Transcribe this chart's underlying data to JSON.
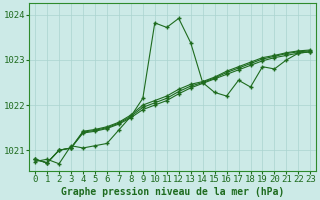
{
  "title": "Graphe pression niveau de la mer (hPa)",
  "background_color": "#cceae7",
  "grid_color": "#aad4d0",
  "line_color": "#1e6b1e",
  "xlim": [
    -0.5,
    23.5
  ],
  "ylim": [
    1020.55,
    1024.25
  ],
  "yticks": [
    1021,
    1022,
    1023,
    1024
  ],
  "xticks": [
    0,
    1,
    2,
    3,
    4,
    5,
    6,
    7,
    8,
    9,
    10,
    11,
    12,
    13,
    14,
    15,
    16,
    17,
    18,
    19,
    20,
    21,
    22,
    23
  ],
  "series": [
    [
      1020.75,
      1020.8,
      1020.7,
      1021.1,
      1021.05,
      1021.1,
      1021.15,
      1021.45,
      1021.75,
      1022.15,
      1023.82,
      1023.72,
      1023.92,
      1023.38,
      1022.5,
      1022.28,
      1022.2,
      1022.55,
      1022.4,
      1022.85,
      1022.8,
      1023.0,
      1023.15,
      1023.18
    ],
    [
      1020.8,
      1020.72,
      1021.0,
      1021.05,
      1021.38,
      1021.42,
      1021.48,
      1021.58,
      1021.72,
      1021.9,
      1022.0,
      1022.1,
      1022.25,
      1022.38,
      1022.48,
      1022.58,
      1022.68,
      1022.78,
      1022.88,
      1022.98,
      1023.05,
      1023.1,
      1023.15,
      1023.18
    ],
    [
      1020.8,
      1020.72,
      1021.0,
      1021.05,
      1021.4,
      1021.44,
      1021.5,
      1021.6,
      1021.75,
      1021.95,
      1022.05,
      1022.15,
      1022.3,
      1022.42,
      1022.5,
      1022.6,
      1022.72,
      1022.82,
      1022.92,
      1023.02,
      1023.08,
      1023.14,
      1023.18,
      1023.2
    ],
    [
      1020.8,
      1020.72,
      1021.0,
      1021.05,
      1021.42,
      1021.46,
      1021.52,
      1021.62,
      1021.78,
      1022.0,
      1022.1,
      1022.2,
      1022.35,
      1022.46,
      1022.52,
      1022.62,
      1022.75,
      1022.85,
      1022.95,
      1023.05,
      1023.1,
      1023.16,
      1023.2,
      1023.22
    ]
  ],
  "figsize": [
    3.2,
    2.0
  ],
  "dpi": 100,
  "tick_labelsize": 6.5,
  "xlabel_fontsize": 7,
  "spine_color": "#2d8b2d"
}
